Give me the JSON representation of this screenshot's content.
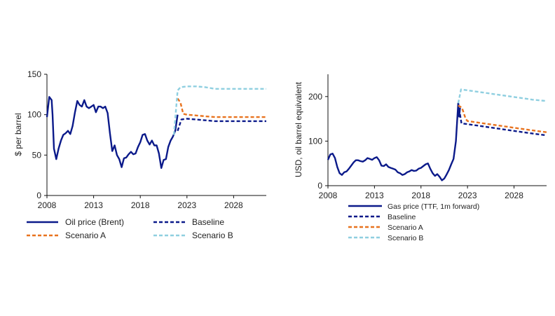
{
  "colors": {
    "oil": "#0b1a8a",
    "gas": "#0b1a8a",
    "baseline": "#0b1a8a",
    "scenario_a": "#e8731f",
    "scenario_b": "#8fcfe0",
    "axis": "#111111"
  },
  "chart_data": [
    {
      "type": "line",
      "title": "",
      "xlabel": "",
      "ylabel": "$ per barrel",
      "xlim": [
        2008,
        2031.5
      ],
      "ylim": [
        0,
        150
      ],
      "xticks": [
        2008,
        2013,
        2018,
        2023,
        2028
      ],
      "yticks": [
        0,
        50,
        100,
        150
      ],
      "grid": false,
      "legend_position": "bottom",
      "series": [
        {
          "name": "Oil price (Brent)",
          "style": "solid",
          "x": [
            2008.0,
            2008.25,
            2008.5,
            2008.6,
            2008.75,
            2009.0,
            2009.25,
            2009.5,
            2009.75,
            2010.0,
            2010.25,
            2010.5,
            2010.75,
            2011.0,
            2011.25,
            2011.5,
            2011.75,
            2012.0,
            2012.25,
            2012.5,
            2012.75,
            2013.0,
            2013.25,
            2013.5,
            2013.75,
            2014.0,
            2014.25,
            2014.5,
            2014.75,
            2015.0,
            2015.25,
            2015.5,
            2015.75,
            2016.0,
            2016.25,
            2016.5,
            2016.75,
            2017.0,
            2017.25,
            2017.5,
            2017.75,
            2018.0,
            2018.25,
            2018.5,
            2018.75,
            2019.0,
            2019.25,
            2019.5,
            2019.75,
            2020.0,
            2020.25,
            2020.5,
            2020.75,
            2021.0,
            2021.25,
            2021.5,
            2021.75,
            2022.0
          ],
          "y": [
            97,
            122,
            118,
            100,
            58,
            45,
            58,
            68,
            75,
            77,
            80,
            76,
            86,
            103,
            117,
            112,
            110,
            118,
            110,
            108,
            110,
            112,
            103,
            110,
            110,
            108,
            110,
            102,
            77,
            55,
            62,
            50,
            45,
            35,
            46,
            47,
            51,
            54,
            51,
            52,
            60,
            66,
            75,
            76,
            68,
            63,
            68,
            62,
            62,
            52,
            34,
            44,
            45,
            60,
            68,
            73,
            80,
            100
          ]
        },
        {
          "name": "Baseline",
          "style": "dashed",
          "x": [
            2022.0,
            2022.4,
            2023.0,
            2024.0,
            2025.0,
            2026.0,
            2027.0,
            2028.0,
            2029.0,
            2030.0,
            2031.5
          ],
          "y": [
            80,
            94,
            95,
            94,
            93,
            92,
            92,
            92,
            92,
            92,
            92
          ]
        },
        {
          "name": "Scenario A",
          "style": "dashed",
          "x": [
            2022.0,
            2022.3,
            2022.6,
            2023.0,
            2024.0,
            2025.0,
            2026.0,
            2027.0,
            2028.0,
            2029.0,
            2030.0,
            2031.5
          ],
          "y": [
            120,
            115,
            101,
            100,
            99,
            98,
            97,
            97,
            97,
            97,
            97,
            97
          ]
        },
        {
          "name": "Scenario B",
          "style": "dashed",
          "x": [
            2021.6,
            2022.0,
            2022.3,
            2023.0,
            2024.0,
            2025.0,
            2026.0,
            2027.0,
            2028.0,
            2029.0,
            2030.0,
            2031.5
          ],
          "y": [
            75,
            130,
            134,
            135,
            135,
            134,
            132,
            132,
            132,
            132,
            132,
            132
          ]
        }
      ]
    },
    {
      "type": "line",
      "title": "",
      "xlabel": "",
      "ylabel": "USD, oil barrel equivalent",
      "xlim": [
        2008,
        2031.5
      ],
      "ylim": [
        0,
        250
      ],
      "xticks": [
        2008,
        2013,
        2018,
        2023,
        2028
      ],
      "yticks": [
        0,
        100,
        200
      ],
      "grid": false,
      "legend_position": "bottom",
      "series": [
        {
          "name": "Gas price (TTF, 1m forward)",
          "style": "solid",
          "x": [
            2008.0,
            2008.25,
            2008.5,
            2008.75,
            2009.0,
            2009.25,
            2009.5,
            2009.75,
            2010.0,
            2010.25,
            2010.5,
            2010.75,
            2011.0,
            2011.25,
            2011.5,
            2011.75,
            2012.0,
            2012.25,
            2012.5,
            2012.75,
            2013.0,
            2013.25,
            2013.5,
            2013.75,
            2014.0,
            2014.25,
            2014.5,
            2014.75,
            2015.0,
            2015.25,
            2015.5,
            2015.75,
            2016.0,
            2016.25,
            2016.5,
            2016.75,
            2017.0,
            2017.25,
            2017.5,
            2017.75,
            2018.0,
            2018.25,
            2018.5,
            2018.75,
            2019.0,
            2019.25,
            2019.5,
            2019.75,
            2020.0,
            2020.25,
            2020.5,
            2020.75,
            2021.0,
            2021.25,
            2021.5,
            2021.75,
            2022.0,
            2022.1,
            2022.2
          ],
          "y": [
            58,
            70,
            72,
            62,
            42,
            28,
            24,
            30,
            32,
            38,
            45,
            52,
            57,
            57,
            55,
            54,
            57,
            62,
            60,
            58,
            62,
            64,
            57,
            45,
            44,
            48,
            42,
            40,
            38,
            36,
            30,
            28,
            24,
            26,
            30,
            32,
            35,
            33,
            34,
            38,
            40,
            44,
            48,
            50,
            38,
            28,
            22,
            26,
            20,
            12,
            16,
            25,
            35,
            48,
            60,
            100,
            185,
            155,
            175
          ]
        },
        {
          "name": "Baseline",
          "style": "dashed",
          "x": [
            2022.0,
            2022.35,
            2023.0,
            2024.0,
            2025.0,
            2026.0,
            2027.0,
            2028.0,
            2029.0,
            2030.0,
            2031.5
          ],
          "y": [
            185,
            140,
            138,
            135,
            132,
            129,
            126,
            123,
            120,
            117,
            113
          ]
        },
        {
          "name": "Scenario A",
          "style": "dashed",
          "x": [
            2022.0,
            2022.4,
            2022.8,
            2023.0,
            2024.0,
            2025.0,
            2026.0,
            2027.0,
            2028.0,
            2029.0,
            2030.0,
            2031.5
          ],
          "y": [
            180,
            175,
            150,
            145,
            142,
            139,
            136,
            133,
            130,
            127,
            124,
            120
          ]
        },
        {
          "name": "Scenario B",
          "style": "dashed",
          "x": [
            2022.0,
            2022.3,
            2023.0,
            2024.0,
            2025.0,
            2026.0,
            2027.0,
            2028.0,
            2029.0,
            2030.0,
            2031.5
          ],
          "y": [
            185,
            216,
            214,
            211,
            208,
            205,
            202,
            199,
            196,
            193,
            190
          ]
        }
      ]
    }
  ]
}
